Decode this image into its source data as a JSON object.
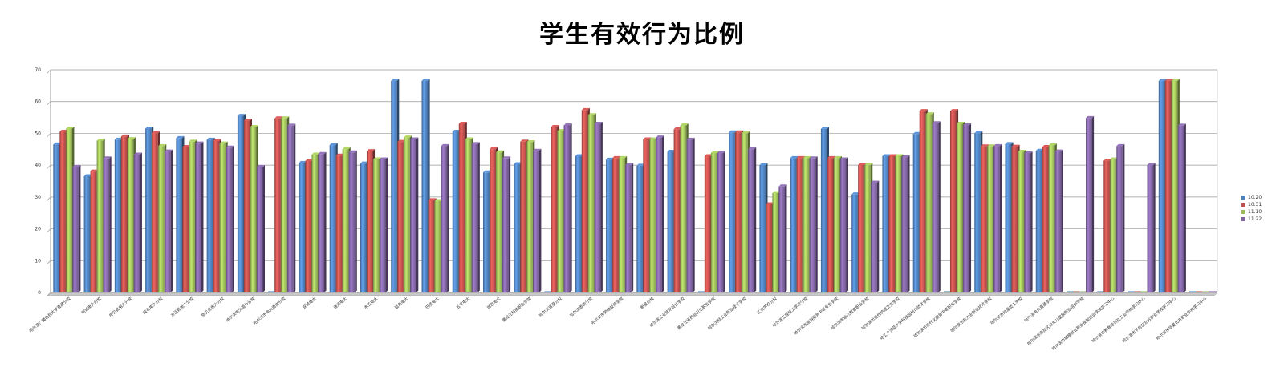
{
  "chart_data": {
    "type": "bar",
    "title": "学生有效行为比例",
    "xlabel": "",
    "ylabel": "",
    "ylim": [
      0,
      70
    ],
    "yticks": [
      0,
      10,
      20,
      30,
      40,
      50,
      60,
      70
    ],
    "grid": true,
    "legend_position": "right",
    "categories": [
      "哈尔滨广播电视大学直属分校",
      "阿城电大分校",
      "呼兰县电大分校",
      "宾县电大分校",
      "方正县电大分校",
      "依兰县电大分校",
      "哈尔滨电大道外分校",
      "哈尔滨市电大南岗分校",
      "双城电大",
      "通河电大",
      "木兰电大",
      "延寿电大",
      "巴彦电大",
      "五常电大",
      "尚志电大",
      "黑龙江科技职业学院",
      "哈尔滨道里分校",
      "哈尔滨香坊分校",
      "哈尔滨市劳动技师学院",
      "新星分校",
      "哈尔滨工业技术设计学校",
      "黑龙江省药品卫生职业学校",
      "哈尔滨轻工业职业技术学校",
      "工贸学校分校",
      "哈尔滨工程技工学校分校",
      "哈尔滨市旅游服务中等专业学校",
      "哈尔滨市幼儿教育职业学校",
      "哈尔滨市现代护理卫生学校",
      "哈工大深蓝大学科技园培训技术学校",
      "哈尔滨市现代化服务中等职业学校",
      "哈尔滨市东方宏职业技术学校",
      "哈尔滨市动漫技工学校",
      "哈尔滨电大直属学院",
      "哈尔滨市南岗区妇女儿童联职业培训学校",
      "哈尔滨市城镇就业职业技能培训学校学习中心",
      "哈尔滨市教育培训及工业学校学习中心",
      "哈尔滨市平房区北方职业学校学习中心",
      "哈尔滨市华夏北方职业学校学习中心"
    ],
    "series": [
      {
        "name": "10.20",
        "color": "#4f81bd",
        "values": [
          46.5,
          36.5,
          48,
          51.5,
          48.5,
          48,
          55.5,
          0,
          40.7,
          46.3,
          40.5,
          66.5,
          66.5,
          50.5,
          37.7,
          40.3,
          0,
          42.8,
          41.7,
          39.8,
          44.2,
          0,
          50.3,
          40,
          42.2,
          51.4,
          30.8,
          42.8,
          49.8,
          0,
          50,
          46.6,
          44.5,
          0,
          0,
          0,
          66.5,
          0
        ]
      },
      {
        "name": "10.31",
        "color": "#c0504d",
        "values": [
          50.5,
          38,
          49,
          50,
          45.7,
          47.6,
          54,
          54.7,
          41.3,
          43,
          44.4,
          47.3,
          29,
          53,
          45,
          47.4,
          52,
          57.3,
          42.2,
          48.1,
          51.3,
          42.8,
          50.3,
          27.7,
          42.2,
          42.2,
          40,
          42.8,
          57,
          57,
          45.9,
          45.8,
          45.7,
          0,
          41.4,
          0,
          66.5,
          0
        ]
      },
      {
        "name": "11.10",
        "color": "#9bbb59",
        "values": [
          51.5,
          47.7,
          48.2,
          46,
          47.4,
          46.8,
          52,
          54.7,
          43.3,
          45,
          41.8,
          48.7,
          28.7,
          48.1,
          44,
          47.2,
          50.7,
          55.7,
          42.2,
          48.1,
          52.5,
          43.8,
          50,
          31.2,
          42.2,
          42.2,
          40,
          42.8,
          56,
          53,
          45.9,
          44.2,
          46.2,
          0,
          41.8,
          0,
          66.5,
          0
        ]
      },
      {
        "name": "11.22",
        "color": "#8064a2",
        "values": [
          39.4,
          42.1,
          43.3,
          44.3,
          46.8,
          45.5,
          39.4,
          52.4,
          43.5,
          44,
          41.8,
          48.1,
          46,
          46.6,
          42.1,
          44.5,
          52.5,
          53,
          40,
          48.7,
          48,
          43.8,
          45,
          33.3,
          42.1,
          41.8,
          34.5,
          42.5,
          53.2,
          52.5,
          46,
          43.7,
          44.3,
          54.8,
          46,
          40,
          52.4,
          0
        ]
      }
    ]
  }
}
